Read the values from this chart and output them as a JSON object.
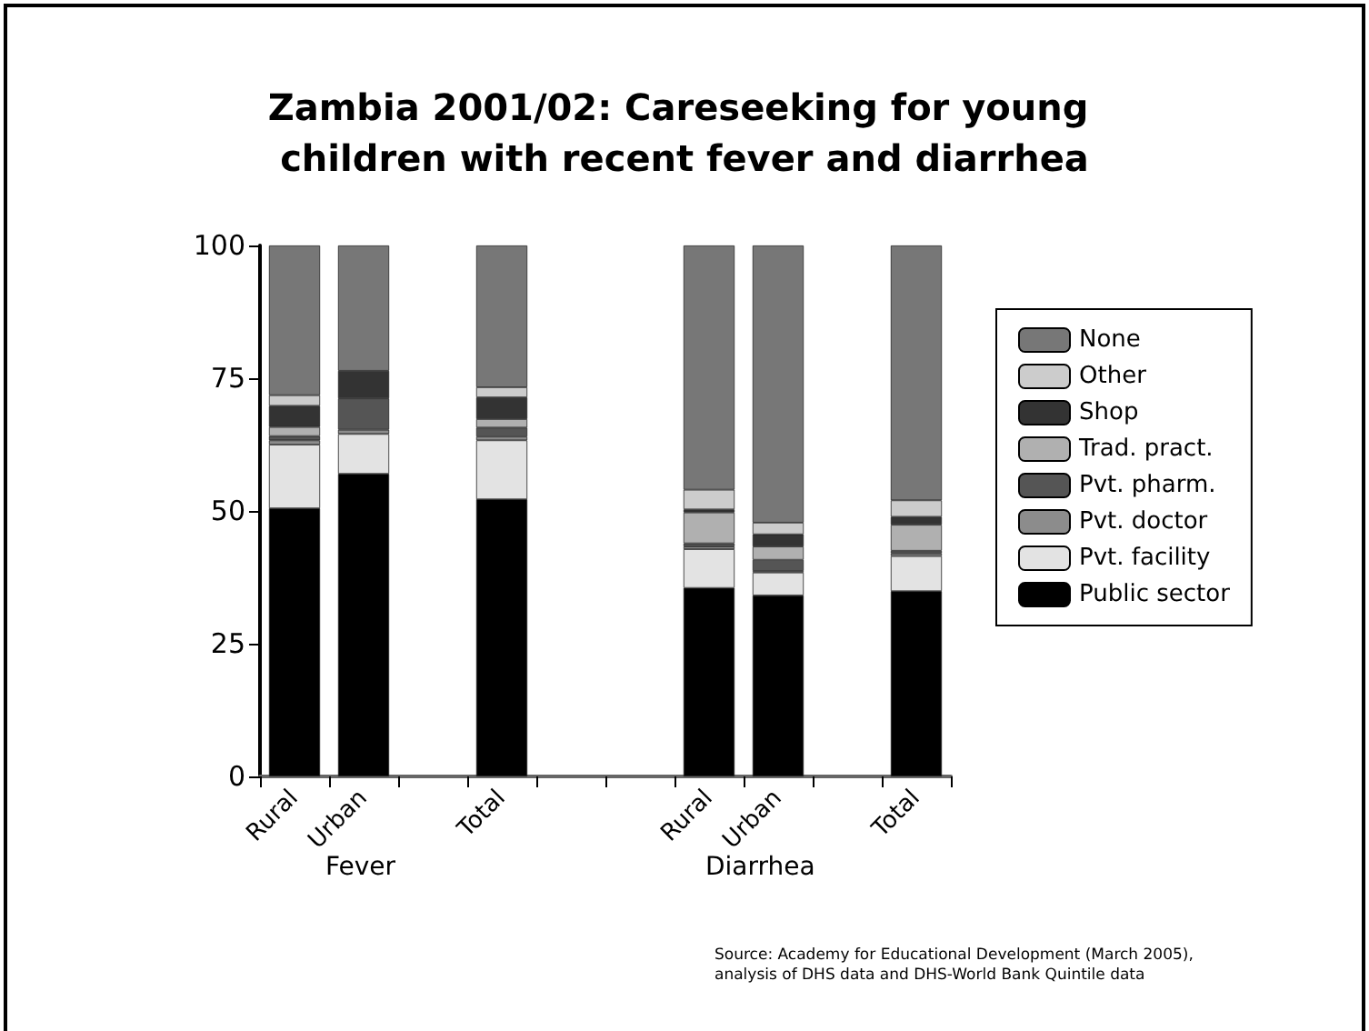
{
  "chart_data": {
    "type": "bar",
    "stacked": true,
    "title": "Zambia 2001/02: Careseeking for young children with recent fever and diarrhea",
    "categories": [
      "Rural",
      "Urban",
      null,
      "Total",
      null,
      null,
      "Rural",
      "Urban",
      null,
      "Total"
    ],
    "series": [
      {
        "name": "Public sector",
        "color": "#000000",
        "values": [
          50.5,
          57,
          null,
          52.2,
          null,
          null,
          35.5,
          34.1,
          null,
          34.9
        ]
      },
      {
        "name": "Pvt. facility",
        "color": "#e3e3e3",
        "values": [
          12,
          7.5,
          null,
          11.1,
          null,
          null,
          7.3,
          4.3,
          null,
          6.6
        ]
      },
      {
        "name": "Pvt. doctor",
        "color": "#8c8c8c",
        "values": [
          0.8,
          0.8,
          null,
          0.7,
          null,
          null,
          0.5,
          0.3,
          null,
          0.5
        ]
      },
      {
        "name": "Pvt. pharm.",
        "color": "#555555",
        "values": [
          0.8,
          5.9,
          null,
          1.7,
          null,
          null,
          0.6,
          2.1,
          null,
          0.5
        ]
      },
      {
        "name": "Trad. pract.",
        "color": "#b0b0b0",
        "values": [
          1.7,
          0,
          null,
          1.6,
          null,
          null,
          5.8,
          2.5,
          null,
          4.9
        ]
      },
      {
        "name": "Shop",
        "color": "#333333",
        "values": [
          4,
          5.2,
          null,
          4.1,
          null,
          null,
          0.6,
          2.3,
          null,
          1.5
        ]
      },
      {
        "name": "Other",
        "color": "#cccccc",
        "values": [
          2,
          0,
          null,
          1.9,
          null,
          null,
          3.7,
          2.2,
          null,
          3.1
        ]
      },
      {
        "name": "None",
        "color": "#777777",
        "values": [
          28.2,
          23.6,
          null,
          26.7,
          null,
          null,
          46,
          52.2,
          null,
          48
        ]
      }
    ],
    "ylim": [
      0,
      100
    ],
    "yticks": [
      0,
      25,
      50,
      75,
      100
    ],
    "grid": false,
    "legend": "right",
    "annotations": [
      "Fever",
      "Diarrhea",
      "Source: Academy for Educational Development (March 2005),\nanalysis of DHS data and DHS-World Bank Quintile data"
    ]
  }
}
